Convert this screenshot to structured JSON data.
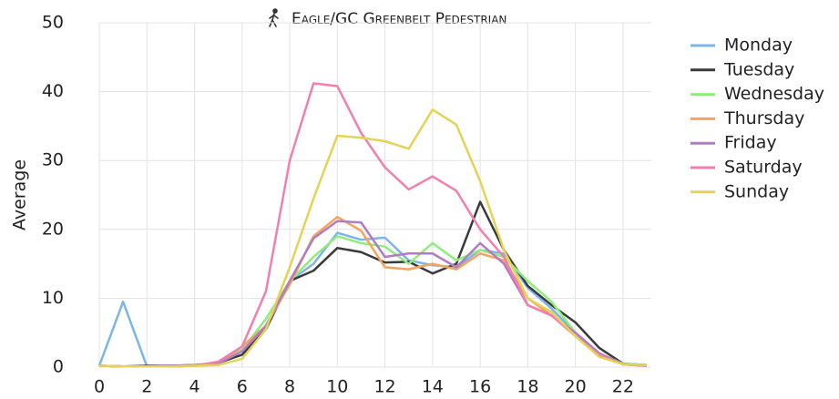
{
  "chart_data": {
    "type": "line",
    "title": "Eagle/GC Greenbelt Pedestrian",
    "y_label": "Average",
    "x": [
      0,
      1,
      2,
      3,
      4,
      5,
      6,
      7,
      8,
      9,
      10,
      11,
      12,
      13,
      14,
      15,
      16,
      17,
      18,
      19,
      20,
      21,
      22,
      23
    ],
    "xlim": [
      0,
      23
    ],
    "xticks": [
      0,
      2,
      4,
      6,
      8,
      10,
      12,
      14,
      16,
      18,
      20,
      22
    ],
    "ylim": [
      0,
      50
    ],
    "yticks": [
      0,
      10,
      20,
      30,
      40,
      50
    ],
    "grid": true,
    "legend": "right",
    "series": [
      {
        "name": "Monday",
        "color": "#7cb5e8",
        "values": [
          0.2,
          9.5,
          0.1,
          0.1,
          0.2,
          0.4,
          2.5,
          6,
          12.5,
          15,
          19.5,
          18.5,
          18.8,
          15.5,
          14.8,
          14.5,
          17,
          16.5,
          11.5,
          8.5,
          5,
          2,
          0.5,
          0.3
        ]
      },
      {
        "name": "Tuesday",
        "color": "#3a3a3a",
        "values": [
          0.2,
          0.1,
          0.2,
          0.2,
          0.3,
          0.6,
          1.8,
          5.5,
          12.5,
          14,
          17.3,
          16.7,
          15.2,
          15.3,
          13.6,
          15,
          24,
          17,
          11.8,
          9,
          6.5,
          2.8,
          0.5,
          0.3
        ]
      },
      {
        "name": "Wednesday",
        "color": "#90ed7d",
        "values": [
          0.2,
          0.1,
          0.1,
          0.1,
          0.2,
          0.5,
          2.5,
          7,
          12.5,
          16,
          19,
          18,
          17.5,
          15,
          18,
          15.5,
          17,
          16,
          12.5,
          9.5,
          5,
          2,
          0.5,
          0.3
        ]
      },
      {
        "name": "Thursday",
        "color": "#f7a35c",
        "values": [
          0.2,
          0.1,
          0.1,
          0.1,
          0.2,
          0.4,
          3,
          6,
          12,
          19,
          21.8,
          19.8,
          14.5,
          14.2,
          15,
          14.2,
          16.5,
          15.5,
          10,
          7.5,
          5,
          2,
          0.4,
          0.2
        ]
      },
      {
        "name": "Friday",
        "color": "#b07cc2",
        "values": [
          0.2,
          0.1,
          0.1,
          0.2,
          0.3,
          0.5,
          2.3,
          6,
          12.5,
          18.7,
          21.2,
          21,
          16,
          16.5,
          16.5,
          14.5,
          18,
          15,
          9,
          7.5,
          5,
          2,
          0.4,
          0.2
        ]
      },
      {
        "name": "Saturday",
        "color": "#f27fb0",
        "values": [
          0.2,
          0.1,
          0.1,
          0.1,
          0.2,
          0.8,
          3,
          11,
          30,
          41.2,
          40.8,
          34,
          29,
          25.8,
          27.7,
          25.6,
          20,
          16,
          9,
          7.5,
          4.5,
          1.8,
          0.4,
          0.2
        ]
      },
      {
        "name": "Sunday",
        "color": "#e4d354",
        "values": [
          0.2,
          0.1,
          0.1,
          0.1,
          0.2,
          0.3,
          1.2,
          5.5,
          14.5,
          24.5,
          33.6,
          33.3,
          32.8,
          31.7,
          37.4,
          35.2,
          27,
          17,
          10,
          8,
          4.5,
          1.5,
          0.4,
          0.3
        ]
      }
    ]
  }
}
